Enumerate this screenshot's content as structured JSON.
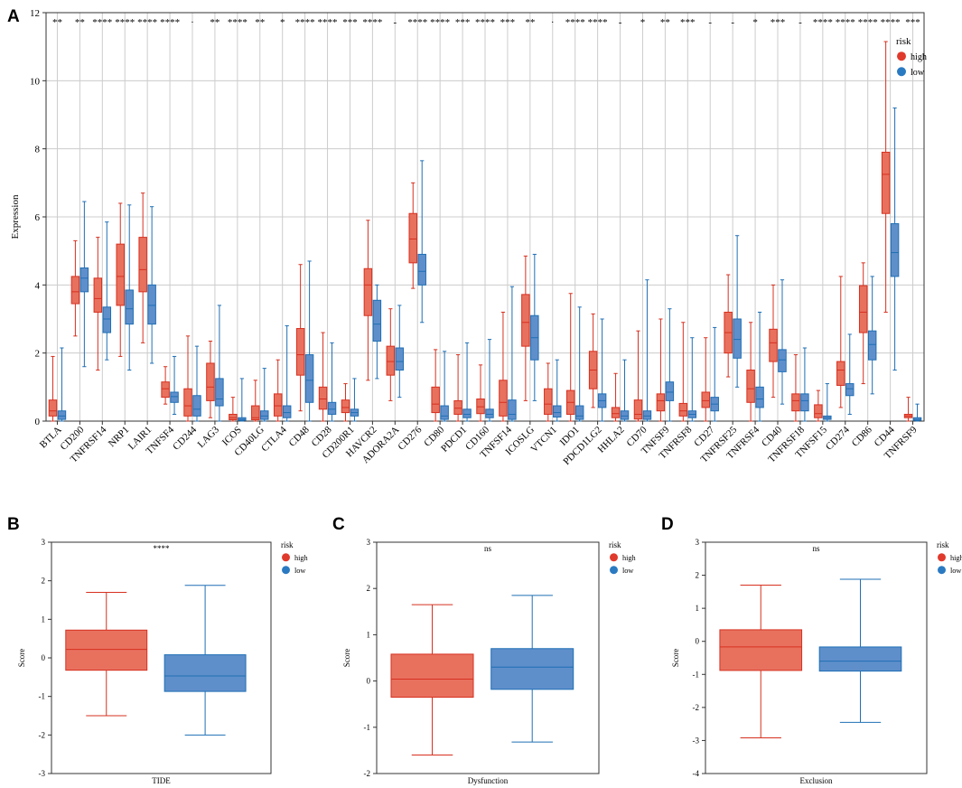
{
  "colors": {
    "high_fill": "#E8715E",
    "high_stroke": "#D7301F",
    "low_fill": "#5F8FCB",
    "low_stroke": "#1F6FB5",
    "high_dot": "#E03A2C",
    "low_dot": "#2A7AC2",
    "grid": "#CCCCCC"
  },
  "chart_data": [
    {
      "panel": "A",
      "type": "box",
      "title": "",
      "xlabel": "",
      "ylabel": "Expression",
      "ylim": [
        0,
        12
      ],
      "yticks": [
        0,
        2,
        4,
        6,
        8,
        10,
        12
      ],
      "grid": true,
      "legend": {
        "title": "risk",
        "position": "top-right",
        "entries": [
          "high",
          "low"
        ]
      },
      "categories": [
        "BTLA",
        "CD200",
        "TNFRSF14",
        "NRP1",
        "LAIR1",
        "TNFSF4",
        "CD244",
        "LAG3",
        "ICOS",
        "CD40LG",
        "CTLA4",
        "CD48",
        "CD28",
        "CD200R1",
        "HAVCR2",
        "ADORA2A",
        "CD276",
        "CD80",
        "PDCD1",
        "CD160",
        "TNFSF14",
        "ICOSLG",
        "VTCN1",
        "IDO1",
        "PDCD1LG2",
        "HHLA2",
        "CD70",
        "TNFSF9",
        "TNFRSF8",
        "CD27",
        "TNFRSF25",
        "TNFRSF4",
        "CD40",
        "TNFRSF18",
        "TNFSF15",
        "CD274",
        "CD86",
        "CD44",
        "TNFRSF9"
      ],
      "significance": [
        "**",
        "**",
        "****",
        "****",
        "****",
        "****",
        "·",
        "**",
        "****",
        "**",
        "*",
        "****",
        "****",
        "***",
        "****",
        "-",
        "****",
        "****",
        "***",
        "****",
        "***",
        "**",
        "·",
        "****",
        "****",
        "-",
        "*",
        "**",
        "***",
        "-",
        "-",
        "*",
        "***",
        "-",
        "****",
        "****",
        "****",
        "****",
        "***"
      ],
      "series": [
        {
          "name": "high",
          "boxes": [
            {
              "min": 0.0,
              "q1": 0.15,
              "median": 0.3,
              "q3": 0.62,
              "max": 1.9
            },
            {
              "min": 2.5,
              "q1": 3.45,
              "median": 3.8,
              "q3": 4.25,
              "max": 5.3
            },
            {
              "min": 1.5,
              "q1": 3.2,
              "median": 3.6,
              "q3": 4.2,
              "max": 5.4
            },
            {
              "min": 1.9,
              "q1": 3.4,
              "median": 4.25,
              "q3": 5.2,
              "max": 6.4
            },
            {
              "min": 2.3,
              "q1": 3.8,
              "median": 4.45,
              "q3": 5.4,
              "max": 6.7
            },
            {
              "min": 0.5,
              "q1": 0.7,
              "median": 0.95,
              "q3": 1.15,
              "max": 1.6
            },
            {
              "min": 0.0,
              "q1": 0.15,
              "median": 0.45,
              "q3": 0.95,
              "max": 2.5
            },
            {
              "min": 0.1,
              "q1": 0.6,
              "median": 1.0,
              "q3": 1.7,
              "max": 2.35
            },
            {
              "min": 0.0,
              "q1": 0.04,
              "median": 0.1,
              "q3": 0.2,
              "max": 0.7
            },
            {
              "min": 0.0,
              "q1": 0.04,
              "median": 0.1,
              "q3": 0.45,
              "max": 1.2
            },
            {
              "min": 0.0,
              "q1": 0.15,
              "median": 0.45,
              "q3": 0.8,
              "max": 1.8
            },
            {
              "min": 0.3,
              "q1": 1.35,
              "median": 1.95,
              "q3": 2.72,
              "max": 4.6
            },
            {
              "min": 0.0,
              "q1": 0.35,
              "median": 0.65,
              "q3": 1.0,
              "max": 2.6
            },
            {
              "min": 0.0,
              "q1": 0.25,
              "median": 0.4,
              "q3": 0.62,
              "max": 1.1
            },
            {
              "min": 1.2,
              "q1": 3.1,
              "median": 4.0,
              "q3": 4.48,
              "max": 5.9
            },
            {
              "min": 0.6,
              "q1": 1.35,
              "median": 1.75,
              "q3": 2.2,
              "max": 3.3
            },
            {
              "min": 3.9,
              "q1": 4.65,
              "median": 5.35,
              "q3": 6.1,
              "max": 7.0
            },
            {
              "min": 0.0,
              "q1": 0.25,
              "median": 0.5,
              "q3": 1.0,
              "max": 2.1
            },
            {
              "min": 0.0,
              "q1": 0.2,
              "median": 0.38,
              "q3": 0.6,
              "max": 1.95
            },
            {
              "min": 0.0,
              "q1": 0.22,
              "median": 0.42,
              "q3": 0.65,
              "max": 1.65
            },
            {
              "min": 0.0,
              "q1": 0.15,
              "median": 0.55,
              "q3": 1.2,
              "max": 3.2
            },
            {
              "min": 0.6,
              "q1": 2.2,
              "median": 2.9,
              "q3": 3.72,
              "max": 4.85
            },
            {
              "min": 0.0,
              "q1": 0.2,
              "median": 0.5,
              "q3": 0.95,
              "max": 1.7
            },
            {
              "min": 0.0,
              "q1": 0.2,
              "median": 0.55,
              "q3": 0.9,
              "max": 3.75
            },
            {
              "min": 0.4,
              "q1": 0.95,
              "median": 1.5,
              "q3": 2.05,
              "max": 3.15
            },
            {
              "min": 0.0,
              "q1": 0.1,
              "median": 0.22,
              "q3": 0.4,
              "max": 1.4
            },
            {
              "min": 0.0,
              "q1": 0.06,
              "median": 0.2,
              "q3": 0.62,
              "max": 2.65
            },
            {
              "min": 0.0,
              "q1": 0.3,
              "median": 0.6,
              "q3": 0.8,
              "max": 3.0
            },
            {
              "min": 0.0,
              "q1": 0.15,
              "median": 0.3,
              "q3": 0.52,
              "max": 2.9
            },
            {
              "min": 0.0,
              "q1": 0.4,
              "median": 0.6,
              "q3": 0.85,
              "max": 2.45
            },
            {
              "min": 1.3,
              "q1": 2.0,
              "median": 2.6,
              "q3": 3.2,
              "max": 4.3
            },
            {
              "min": 0.0,
              "q1": 0.55,
              "median": 0.95,
              "q3": 1.5,
              "max": 2.9
            },
            {
              "min": 0.7,
              "q1": 1.75,
              "median": 2.3,
              "q3": 2.7,
              "max": 4.0
            },
            {
              "min": 0.0,
              "q1": 0.3,
              "median": 0.6,
              "q3": 0.8,
              "max": 1.95
            },
            {
              "min": 0.0,
              "q1": 0.1,
              "median": 0.22,
              "q3": 0.48,
              "max": 0.9
            },
            {
              "min": 0.4,
              "q1": 1.05,
              "median": 1.5,
              "q3": 1.75,
              "max": 4.25
            },
            {
              "min": 1.1,
              "q1": 2.6,
              "median": 3.2,
              "q3": 3.98,
              "max": 4.65
            },
            {
              "min": 3.2,
              "q1": 6.1,
              "median": 7.25,
              "q3": 7.9,
              "max": 11.15
            },
            {
              "min": 0.0,
              "q1": 0.1,
              "median": 0.15,
              "q3": 0.2,
              "max": 0.7
            }
          ]
        },
        {
          "name": "low",
          "boxes": [
            {
              "min": 0.0,
              "q1": 0.05,
              "median": 0.15,
              "q3": 0.3,
              "max": 2.15
            },
            {
              "min": 1.6,
              "q1": 3.8,
              "median": 4.2,
              "q3": 4.5,
              "max": 6.45
            },
            {
              "min": 1.8,
              "q1": 2.6,
              "median": 3.0,
              "q3": 3.35,
              "max": 5.85
            },
            {
              "min": 1.5,
              "q1": 2.85,
              "median": 3.3,
              "q3": 3.85,
              "max": 6.35
            },
            {
              "min": 1.7,
              "q1": 2.85,
              "median": 3.4,
              "q3": 4.0,
              "max": 6.3
            },
            {
              "min": 0.2,
              "q1": 0.55,
              "median": 0.72,
              "q3": 0.85,
              "max": 1.9
            },
            {
              "min": 0.0,
              "q1": 0.15,
              "median": 0.35,
              "q3": 0.75,
              "max": 2.2
            },
            {
              "min": 0.0,
              "q1": 0.45,
              "median": 0.65,
              "q3": 1.25,
              "max": 3.4
            },
            {
              "min": 0.0,
              "q1": 0.02,
              "median": 0.05,
              "q3": 0.1,
              "max": 1.25
            },
            {
              "min": 0.0,
              "q1": 0.05,
              "median": 0.15,
              "q3": 0.3,
              "max": 1.55
            },
            {
              "min": 0.0,
              "q1": 0.1,
              "median": 0.25,
              "q3": 0.45,
              "max": 2.8
            },
            {
              "min": 0.0,
              "q1": 0.55,
              "median": 1.2,
              "q3": 1.95,
              "max": 4.7
            },
            {
              "min": 0.0,
              "q1": 0.2,
              "median": 0.35,
              "q3": 0.55,
              "max": 2.3
            },
            {
              "min": 0.0,
              "q1": 0.15,
              "median": 0.25,
              "q3": 0.35,
              "max": 1.25
            },
            {
              "min": 1.25,
              "q1": 2.35,
              "median": 2.85,
              "q3": 3.55,
              "max": 4.0
            },
            {
              "min": 0.7,
              "q1": 1.5,
              "median": 1.75,
              "q3": 2.15,
              "max": 3.4
            },
            {
              "min": 2.9,
              "q1": 4.0,
              "median": 4.4,
              "q3": 4.9,
              "max": 7.65
            },
            {
              "min": 0.0,
              "q1": 0.05,
              "median": 0.15,
              "q3": 0.45,
              "max": 2.05
            },
            {
              "min": 0.0,
              "q1": 0.1,
              "median": 0.2,
              "q3": 0.35,
              "max": 2.3
            },
            {
              "min": 0.0,
              "q1": 0.1,
              "median": 0.2,
              "q3": 0.35,
              "max": 2.4
            },
            {
              "min": 0.0,
              "q1": 0.05,
              "median": 0.2,
              "q3": 0.62,
              "max": 3.95
            },
            {
              "min": 0.6,
              "q1": 1.8,
              "median": 2.45,
              "q3": 3.1,
              "max": 4.9
            },
            {
              "min": 0.0,
              "q1": 0.12,
              "median": 0.25,
              "q3": 0.45,
              "max": 1.8
            },
            {
              "min": 0.0,
              "q1": 0.05,
              "median": 0.15,
              "q3": 0.45,
              "max": 3.35
            },
            {
              "min": 0.0,
              "q1": 0.4,
              "median": 0.6,
              "q3": 0.8,
              "max": 3.0
            },
            {
              "min": 0.0,
              "q1": 0.05,
              "median": 0.15,
              "q3": 0.3,
              "max": 1.8
            },
            {
              "min": 0.0,
              "q1": 0.05,
              "median": 0.15,
              "q3": 0.3,
              "max": 4.15
            },
            {
              "min": 0.0,
              "q1": 0.6,
              "median": 0.85,
              "q3": 1.15,
              "max": 3.3
            },
            {
              "min": 0.0,
              "q1": 0.1,
              "median": 0.2,
              "q3": 0.3,
              "max": 2.45
            },
            {
              "min": 0.0,
              "q1": 0.3,
              "median": 0.5,
              "q3": 0.7,
              "max": 2.75
            },
            {
              "min": 1.0,
              "q1": 1.85,
              "median": 2.4,
              "q3": 3.0,
              "max": 5.45
            },
            {
              "min": 0.0,
              "q1": 0.4,
              "median": 0.65,
              "q3": 1.0,
              "max": 3.2
            },
            {
              "min": 0.5,
              "q1": 1.45,
              "median": 1.8,
              "q3": 2.1,
              "max": 4.15
            },
            {
              "min": 0.0,
              "q1": 0.3,
              "median": 0.6,
              "q3": 0.8,
              "max": 2.15
            },
            {
              "min": 0.0,
              "q1": 0.05,
              "median": 0.1,
              "q3": 0.15,
              "max": 1.1
            },
            {
              "min": 0.2,
              "q1": 0.75,
              "median": 0.95,
              "q3": 1.1,
              "max": 2.55
            },
            {
              "min": 0.8,
              "q1": 1.8,
              "median": 2.25,
              "q3": 2.65,
              "max": 4.25
            },
            {
              "min": 1.5,
              "q1": 4.25,
              "median": 4.95,
              "q3": 5.8,
              "max": 9.2
            },
            {
              "min": 0.0,
              "q1": 0.02,
              "median": 0.05,
              "q3": 0.1,
              "max": 0.5
            }
          ]
        }
      ]
    },
    {
      "panel": "B",
      "type": "box",
      "title": "",
      "xlabel": "TIDE",
      "ylabel": "Score",
      "ylim": [
        -3,
        3
      ],
      "yticks": [
        -3,
        -2,
        -1,
        0,
        1,
        2,
        3
      ],
      "grid": false,
      "significance": "****",
      "legend": {
        "title": "risk",
        "position": "top-right",
        "entries": [
          "high",
          "low"
        ]
      },
      "series": [
        {
          "name": "high",
          "box": {
            "min": -1.5,
            "q1": -0.32,
            "median": 0.22,
            "q3": 0.72,
            "max": 1.7
          }
        },
        {
          "name": "low",
          "box": {
            "min": -2.0,
            "q1": -0.87,
            "median": -0.47,
            "q3": 0.08,
            "max": 1.88
          }
        }
      ]
    },
    {
      "panel": "C",
      "type": "box",
      "title": "",
      "xlabel": "Dysfunction",
      "ylabel": "Score",
      "ylim": [
        -2,
        3
      ],
      "yticks": [
        -2,
        -1,
        0,
        1,
        2,
        3
      ],
      "grid": false,
      "significance": "ns",
      "legend": {
        "title": "risk",
        "position": "top-right",
        "entries": [
          "high",
          "low"
        ]
      },
      "series": [
        {
          "name": "high",
          "box": {
            "min": -1.6,
            "q1": -0.35,
            "median": 0.04,
            "q3": 0.58,
            "max": 1.65
          }
        },
        {
          "name": "low",
          "box": {
            "min": -1.32,
            "q1": -0.18,
            "median": 0.3,
            "q3": 0.7,
            "max": 1.85
          }
        }
      ]
    },
    {
      "panel": "D",
      "type": "box",
      "title": "",
      "xlabel": "Exclusion",
      "ylabel": "Score",
      "ylim": [
        -4,
        3
      ],
      "yticks": [
        -4,
        -3,
        -2,
        -1,
        0,
        1,
        2,
        3
      ],
      "grid": false,
      "significance": "ns",
      "legend": {
        "title": "risk",
        "position": "top-right",
        "entries": [
          "high",
          "low"
        ]
      },
      "series": [
        {
          "name": "high",
          "box": {
            "min": -2.92,
            "q1": -0.88,
            "median": -0.17,
            "q3": 0.35,
            "max": 1.7
          }
        },
        {
          "name": "low",
          "box": {
            "min": -2.45,
            "q1": -0.9,
            "median": -0.6,
            "q3": -0.17,
            "max": 1.88
          }
        }
      ]
    }
  ]
}
